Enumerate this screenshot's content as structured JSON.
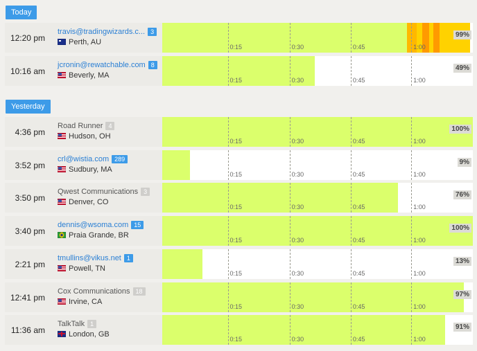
{
  "sections": [
    {
      "label": "Today",
      "rows": [
        {
          "time": "12:20 pm",
          "who": "travis@tradingwizards.c...",
          "who_link": true,
          "count": "3",
          "count_style": "blue",
          "flag": "au",
          "location": "Perth, AU",
          "pct": "99%",
          "fraction": 0.99,
          "heat": [
            {
              "from": 0.787,
              "to": 0.82,
              "color": "#ffb800"
            },
            {
              "from": 0.82,
              "to": 0.838,
              "color": "#ffd200"
            },
            {
              "from": 0.838,
              "to": 0.86,
              "color": "#ff9a00"
            },
            {
              "from": 0.86,
              "to": 0.873,
              "color": "#ffd200"
            },
            {
              "from": 0.873,
              "to": 0.893,
              "color": "#ff9a00"
            },
            {
              "from": 0.893,
              "to": 0.99,
              "color": "#ffd200"
            }
          ]
        },
        {
          "time": "10:16 am",
          "who": "jcronin@rewatchable.com",
          "who_link": true,
          "count": "8",
          "count_style": "blue",
          "flag": "us",
          "location": "Beverly, MA",
          "pct": "49%",
          "fraction": 0.49,
          "heat": []
        }
      ]
    },
    {
      "label": "Yesterday",
      "rows": [
        {
          "time": "4:36 pm",
          "who": "Road Runner",
          "who_link": false,
          "count": "4",
          "count_style": "gray",
          "flag": "us",
          "location": "Hudson, OH",
          "pct": "100%",
          "fraction": 1.0,
          "heat": []
        },
        {
          "time": "3:52 pm",
          "who": "crl@wistia.com",
          "who_link": true,
          "count": "289",
          "count_style": "blue",
          "flag": "us",
          "location": "Sudbury, MA",
          "pct": "9%",
          "fraction": 0.09,
          "heat": []
        },
        {
          "time": "3:50 pm",
          "who": "Qwest Communications",
          "who_link": false,
          "count": "3",
          "count_style": "gray",
          "flag": "us",
          "location": "Denver, CO",
          "pct": "76%",
          "fraction": 0.76,
          "heat": []
        },
        {
          "time": "3:40 pm",
          "who": "dennis@wsoma.com",
          "who_link": true,
          "count": "15",
          "count_style": "blue",
          "flag": "br",
          "location": "Praia Grande, BR",
          "pct": "100%",
          "fraction": 1.0,
          "heat": []
        },
        {
          "time": "2:21 pm",
          "who": "tmullins@vikus.net",
          "who_link": true,
          "count": "1",
          "count_style": "blue",
          "flag": "us",
          "location": "Powell, TN",
          "pct": "13%",
          "fraction": 0.13,
          "heat": []
        },
        {
          "time": "12:41 pm",
          "who": "Cox Communications",
          "who_link": false,
          "count": "18",
          "count_style": "gray",
          "flag": "us",
          "location": "Irvine, CA",
          "pct": "97%",
          "fraction": 0.97,
          "heat": []
        },
        {
          "time": "11:36 am",
          "who": "TalkTalk",
          "who_link": false,
          "count": "1",
          "count_style": "gray",
          "flag": "gb",
          "location": "London, GB",
          "pct": "91%",
          "fraction": 0.91,
          "heat": []
        }
      ]
    }
  ],
  "ticks": [
    "0:15",
    "0:30",
    "0:45",
    "1:00"
  ],
  "tick_fractions": [
    0.211,
    0.41,
    0.607,
    0.802
  ],
  "colors": {
    "fill": "#dbff6c",
    "accent": "#3d9be8"
  }
}
